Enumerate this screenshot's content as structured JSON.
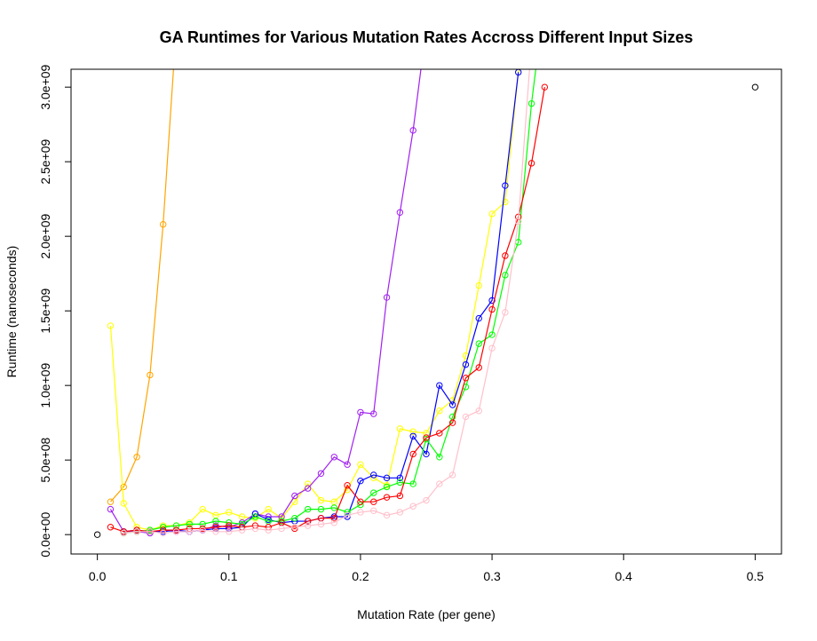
{
  "chart_data": {
    "type": "line",
    "title": "GA Runtimes for Various Mutation Rates Accross Different Input Sizes",
    "xlabel": "Mutation Rate (per gene)",
    "ylabel": "Runtime (nanoseconds)",
    "xlim": [
      -0.02,
      0.52
    ],
    "ylim": [
      -130000000.0,
      3120000000.0
    ],
    "x_ticks": [
      0.0,
      0.1,
      0.2,
      0.3,
      0.4,
      0.5
    ],
    "x_tick_labels": [
      "0.0",
      "0.1",
      "0.2",
      "0.3",
      "0.4",
      "0.5"
    ],
    "y_ticks": [
      0,
      500000000,
      1000000000,
      1500000000,
      2000000000,
      2500000000,
      3000000000
    ],
    "y_tick_labels": [
      "0.0e+00",
      "5.0e+08",
      "1.0e+09",
      "1.5e+09",
      "2.0e+09",
      "2.5e+09",
      "3.0e+09"
    ],
    "grid": false,
    "legend": "none",
    "series": [
      {
        "color": "#000000",
        "lines": false,
        "x": [
          0.0,
          0.5
        ],
        "y": [
          0,
          3000000000
        ]
      },
      {
        "color": "#FFA500",
        "lines": true,
        "x": [
          0.01,
          0.02,
          0.03,
          0.04,
          0.05,
          0.06
        ],
        "y": [
          220000000,
          320000000,
          520000000,
          1070000000,
          2080000000,
          3400000000
        ]
      },
      {
        "color": "#FFFF00",
        "lines": true,
        "x": [
          0.01,
          0.02,
          0.03,
          0.04,
          0.05,
          0.06,
          0.07,
          0.08,
          0.09,
          0.1,
          0.11,
          0.12,
          0.13,
          0.14,
          0.15,
          0.16,
          0.17,
          0.18,
          0.19,
          0.2,
          0.21,
          0.22,
          0.23,
          0.24,
          0.25,
          0.26,
          0.27,
          0.28,
          0.29,
          0.3,
          0.31,
          0.32,
          0.33
        ],
        "y": [
          1400000000,
          210000000,
          50000000,
          30000000,
          60000000,
          60000000,
          80000000,
          170000000,
          130000000,
          150000000,
          120000000,
          110000000,
          170000000,
          110000000,
          220000000,
          340000000,
          230000000,
          220000000,
          300000000,
          470000000,
          380000000,
          330000000,
          710000000,
          690000000,
          680000000,
          830000000,
          900000000,
          1200000000,
          1670000000,
          2150000000,
          2230000000,
          3100000000,
          4000000000
        ]
      },
      {
        "color": "#A020F0",
        "lines": true,
        "x": [
          0.01,
          0.02,
          0.03,
          0.04,
          0.05,
          0.06,
          0.07,
          0.08,
          0.09,
          0.1,
          0.11,
          0.12,
          0.13,
          0.14,
          0.15,
          0.16,
          0.17,
          0.18,
          0.19,
          0.2,
          0.21,
          0.22,
          0.23,
          0.24,
          0.25
        ],
        "y": [
          170000000,
          20000000,
          20000000,
          10000000,
          30000000,
          20000000,
          20000000,
          30000000,
          60000000,
          50000000,
          80000000,
          140000000,
          120000000,
          120000000,
          260000000,
          310000000,
          410000000,
          520000000,
          470000000,
          820000000,
          810000000,
          1590000000,
          2160000000,
          2710000000,
          3400000000
        ]
      },
      {
        "color": "#0000FF",
        "lines": true,
        "x": [
          0.02,
          0.03,
          0.04,
          0.05,
          0.06,
          0.07,
          0.08,
          0.09,
          0.1,
          0.11,
          0.12,
          0.13,
          0.14,
          0.15,
          0.16,
          0.17,
          0.18,
          0.19,
          0.2,
          0.21,
          0.22,
          0.23,
          0.24,
          0.25,
          0.26,
          0.27,
          0.28,
          0.29,
          0.3,
          0.31,
          0.32
        ],
        "y": [
          20000000,
          30000000,
          20000000,
          20000000,
          30000000,
          20000000,
          30000000,
          40000000,
          40000000,
          50000000,
          140000000,
          100000000,
          80000000,
          90000000,
          90000000,
          110000000,
          120000000,
          120000000,
          360000000,
          400000000,
          380000000,
          380000000,
          660000000,
          540000000,
          1000000000,
          870000000,
          1140000000,
          1450000000,
          1570000000,
          2340000000,
          3100000000
        ]
      },
      {
        "color": "#00FF00",
        "lines": true,
        "x": [
          0.02,
          0.03,
          0.04,
          0.05,
          0.06,
          0.07,
          0.08,
          0.09,
          0.1,
          0.11,
          0.12,
          0.13,
          0.14,
          0.15,
          0.16,
          0.17,
          0.18,
          0.19,
          0.2,
          0.21,
          0.22,
          0.23,
          0.24,
          0.25,
          0.26,
          0.27,
          0.28,
          0.29,
          0.3,
          0.31,
          0.32,
          0.33,
          0.34
        ],
        "y": [
          10000000,
          20000000,
          30000000,
          50000000,
          60000000,
          70000000,
          70000000,
          90000000,
          80000000,
          70000000,
          120000000,
          90000000,
          90000000,
          110000000,
          170000000,
          170000000,
          180000000,
          150000000,
          200000000,
          280000000,
          320000000,
          350000000,
          340000000,
          640000000,
          520000000,
          790000000,
          990000000,
          1280000000,
          1340000000,
          1740000000,
          1960000000,
          2890000000,
          3600000000
        ]
      },
      {
        "color": "#FF0000",
        "lines": true,
        "x": [
          0.01,
          0.02,
          0.03,
          0.04,
          0.05,
          0.06,
          0.07,
          0.08,
          0.09,
          0.1,
          0.11,
          0.12,
          0.13,
          0.14,
          0.15,
          0.16,
          0.17,
          0.18,
          0.19,
          0.2,
          0.21,
          0.22,
          0.23,
          0.24,
          0.25,
          0.26,
          0.27,
          0.28,
          0.29,
          0.3,
          0.31,
          0.32,
          0.33,
          0.34
        ],
        "y": [
          50000000,
          20000000,
          30000000,
          20000000,
          30000000,
          30000000,
          40000000,
          40000000,
          50000000,
          60000000,
          50000000,
          60000000,
          50000000,
          80000000,
          40000000,
          90000000,
          110000000,
          110000000,
          330000000,
          220000000,
          220000000,
          250000000,
          260000000,
          540000000,
          650000000,
          680000000,
          750000000,
          1050000000,
          1120000000,
          1510000000,
          1870000000,
          2130000000,
          2490000000,
          3000000000
        ]
      },
      {
        "color": "#FFC0CB",
        "lines": true,
        "x": [
          0.02,
          0.03,
          0.04,
          0.05,
          0.06,
          0.07,
          0.08,
          0.09,
          0.1,
          0.11,
          0.12,
          0.13,
          0.14,
          0.15,
          0.16,
          0.17,
          0.18,
          0.19,
          0.2,
          0.21,
          0.22,
          0.23,
          0.24,
          0.25,
          0.26,
          0.27,
          0.28,
          0.29,
          0.3,
          0.31,
          0.32,
          0.33
        ],
        "y": [
          10000000,
          20000000,
          20000000,
          10000000,
          20000000,
          20000000,
          30000000,
          20000000,
          20000000,
          30000000,
          40000000,
          30000000,
          40000000,
          50000000,
          60000000,
          70000000,
          80000000,
          130000000,
          150000000,
          160000000,
          130000000,
          150000000,
          190000000,
          230000000,
          340000000,
          400000000,
          790000000,
          830000000,
          1250000000,
          1490000000,
          2100000000,
          3300000000
        ]
      }
    ]
  }
}
